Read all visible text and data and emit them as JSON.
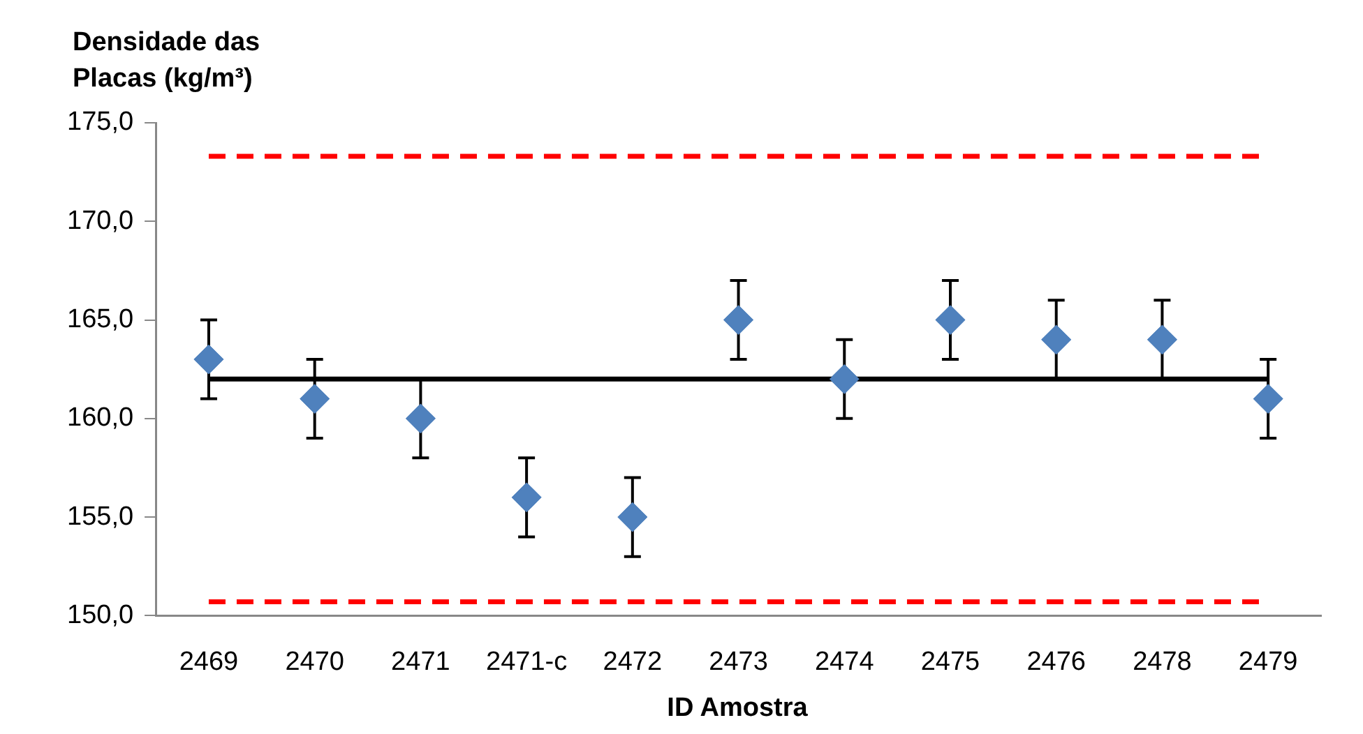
{
  "chart_data": {
    "type": "scatter",
    "ylabel": "Densidade das Placas (kg/m³)",
    "xlabel": "ID Amostra",
    "categories": [
      "2469",
      "2470",
      "2471",
      "2471-c",
      "2472",
      "2473",
      "2474",
      "2475",
      "2476",
      "2478",
      "2479"
    ],
    "series": [
      {
        "color": "#4f81bd",
        "values": [
          163,
          161,
          160,
          156,
          155,
          165,
          162,
          165,
          164,
          164,
          161
        ],
        "errors": [
          2,
          2,
          2,
          2,
          2,
          2,
          2,
          2,
          2,
          2,
          2
        ]
      }
    ],
    "marker": "diamond",
    "grid": false,
    "legend": false,
    "ylim": [
      150,
      175
    ],
    "yticks": [
      {
        "value": 150,
        "label": "150,0"
      },
      {
        "value": 155,
        "label": "155,0"
      },
      {
        "value": 160,
        "label": "160,0"
      },
      {
        "value": 165,
        "label": "165,0"
      },
      {
        "value": 170,
        "label": "170,0"
      },
      {
        "value": 175,
        "label": "175,0"
      }
    ],
    "ref_lines": [
      {
        "axis": "y",
        "value": 173.3,
        "color": "#ff0000",
        "line_style": "dashed"
      },
      {
        "axis": "y",
        "value": 162,
        "color": "#000000",
        "line_style": "solid"
      },
      {
        "axis": "y",
        "value": 150.7,
        "color": "#ff0000",
        "line_style": "dashed"
      }
    ]
  }
}
